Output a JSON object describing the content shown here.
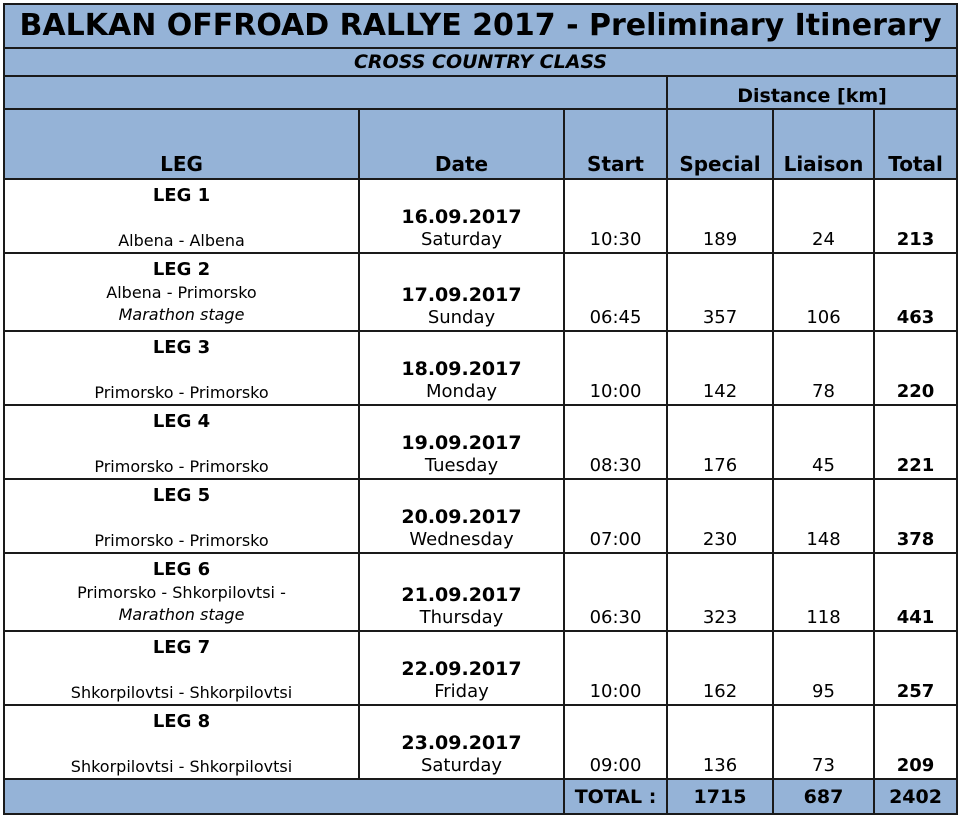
{
  "title": "BALKAN OFFROAD RALLYE 2017 - Preliminary Itinerary",
  "subtitle": "CROSS COUNTRY CLASS",
  "distance_header": "Distance [km]",
  "columns": {
    "leg": "LEG",
    "date": "Date",
    "start": "Start",
    "special": "Special",
    "liaison": "Liaison",
    "total": "Total"
  },
  "rows": [
    {
      "leg": "LEG 1",
      "route": "Albena - Albena",
      "note": "",
      "date": "16.09.2017",
      "day": "Saturday",
      "start": "10:30",
      "special": "189",
      "liaison": "24",
      "total": "213"
    },
    {
      "leg": "LEG 2",
      "route": "Albena - Primorsko",
      "note": "Marathon stage",
      "date": "17.09.2017",
      "day": "Sunday",
      "start": "06:45",
      "special": "357",
      "liaison": "106",
      "total": "463"
    },
    {
      "leg": "LEG 3",
      "route": "Primorsko - Primorsko",
      "note": "",
      "date": "18.09.2017",
      "day": "Monday",
      "start": "10:00",
      "special": "142",
      "liaison": "78",
      "total": "220"
    },
    {
      "leg": "LEG 4",
      "route": "Primorsko - Primorsko",
      "note": "",
      "date": "19.09.2017",
      "day": "Tuesday",
      "start": "08:30",
      "special": "176",
      "liaison": "45",
      "total": "221"
    },
    {
      "leg": "LEG 5",
      "route": "Primorsko - Primorsko",
      "note": "",
      "date": "20.09.2017",
      "day": "Wednesday",
      "start": "07:00",
      "special": "230",
      "liaison": "148",
      "total": "378"
    },
    {
      "leg": "LEG 6",
      "route": "Primorsko - Shkorpilovtsi -",
      "note": "Marathon stage",
      "date": "21.09.2017",
      "day": "Thursday",
      "start": "06:30",
      "special": "323",
      "liaison": "118",
      "total": "441"
    },
    {
      "leg": "LEG 7",
      "route": "Shkorpilovtsi - Shkorpilovtsi",
      "note": "",
      "date": "22.09.2017",
      "day": "Friday",
      "start": "10:00",
      "special": "162",
      "liaison": "95",
      "total": "257"
    },
    {
      "leg": "LEG 8",
      "route": "Shkorpilovtsi - Shkorpilovtsi",
      "note": "",
      "date": "23.09.2017",
      "day": "Saturday",
      "start": "09:00",
      "special": "136",
      "liaison": "73",
      "total": "209"
    }
  ],
  "totals": {
    "label": "TOTAL :",
    "special": "1715",
    "liaison": "687",
    "total": "2402"
  },
  "colors": {
    "header_blue": "#95b3d7",
    "border": "#1a1a1a"
  }
}
